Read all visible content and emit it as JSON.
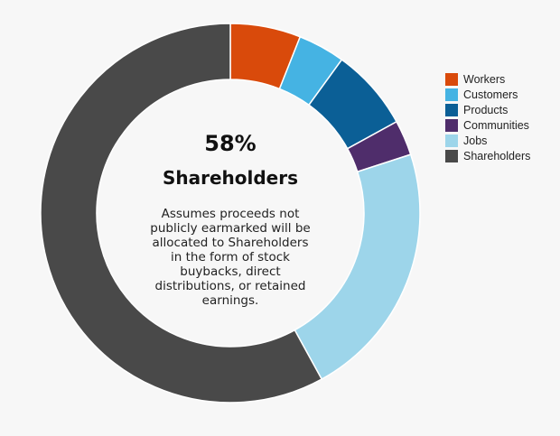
{
  "chart_data": {
    "type": "pie",
    "donut": true,
    "categories": [
      "Workers",
      "Customers",
      "Products",
      "Communities",
      "Jobs",
      "Shareholders"
    ],
    "values": [
      6,
      4,
      7,
      3,
      22,
      58
    ],
    "unit": "%",
    "colors": [
      "#d94a0b",
      "#45b3e3",
      "#0b5f96",
      "#4f2d6b",
      "#9dd5ea",
      "#494949"
    ],
    "legend_position": "right",
    "center": {
      "percent": "58%",
      "label": "Shareholders",
      "note": "Assumes proceeds not publicly earmarked will be allocated to Shareholders in the form of stock buybacks, direct distributions, or retained earnings."
    }
  }
}
